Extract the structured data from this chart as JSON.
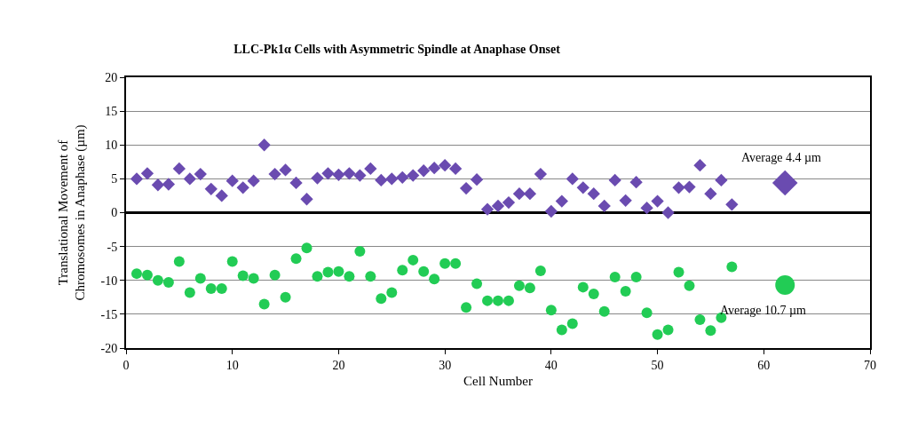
{
  "chart_data": {
    "type": "scatter",
    "title": "LLC-Pk1α Cells with Asymmetric Spindle at Anaphase Onset",
    "xlabel": "Cell Number",
    "ylabel": "Translational Movement of\nChromosomes in Anaphase (µm)",
    "xlim": [
      0,
      70
    ],
    "xticks": [
      0,
      10,
      20,
      30,
      40,
      50,
      60,
      70
    ],
    "ylim": [
      -20,
      20
    ],
    "yticks": [
      -20,
      -15,
      -10,
      -5,
      0,
      5,
      10,
      15,
      20
    ],
    "grid": "y",
    "x": [
      1,
      2,
      3,
      4,
      5,
      6,
      7,
      8,
      9,
      10,
      11,
      12,
      13,
      14,
      15,
      16,
      17,
      18,
      19,
      20,
      21,
      22,
      23,
      24,
      25,
      26,
      27,
      28,
      29,
      30,
      31,
      32,
      33,
      34,
      35,
      36,
      37,
      38,
      39,
      40,
      41,
      42,
      43,
      44,
      45,
      46,
      47,
      48,
      49,
      50,
      51,
      52,
      53,
      54,
      55,
      56,
      57
    ],
    "series": [
      {
        "color": "#6a4bb0",
        "marker": "diamond",
        "values": [
          5,
          5.8,
          4.1,
          4.2,
          6.5,
          5,
          5.7,
          3.5,
          2.5,
          4.7,
          3.7,
          4.7,
          10,
          5.7,
          6.3,
          4.4,
          2,
          5.1,
          5.8,
          5.6,
          5.8,
          5.5,
          6.5,
          4.8,
          5,
          5.2,
          5.5,
          6.2,
          6.6,
          7,
          6.5,
          3.6,
          4.9,
          0.5,
          1,
          1.5,
          2.8,
          2.8,
          5.7,
          0.2,
          1.7,
          5,
          3.7,
          2.8,
          1,
          4.8,
          1.8,
          4.5,
          0.7,
          1.7,
          0,
          3.7,
          3.8,
          7,
          2.8,
          4.8,
          1.2
        ]
      },
      {
        "color": "#22cc55",
        "marker": "circle",
        "values": [
          -9,
          -9.2,
          -10,
          -10.3,
          -7.2,
          -11.8,
          -9.7,
          -11.2,
          -11.2,
          -7.2,
          -9.3,
          -9.7,
          -13.5,
          -9.2,
          -12.5,
          -6.8,
          -5.2,
          -9.4,
          -8.8,
          -8.7,
          -9.4,
          -5.7,
          -9.4,
          -12.7,
          -11.8,
          -8.5,
          -7,
          -8.7,
          -9.8,
          -7.5,
          -7.5,
          -14,
          -10.5,
          -13,
          -13,
          -13,
          -10.8,
          -11.1,
          -8.6,
          -14.4,
          -17.3,
          -16.4,
          -11,
          -12,
          -14.6,
          -9.5,
          -11.6,
          -9.5,
          -14.8,
          -18,
          -17.3,
          -8.8,
          -10.8,
          -15.8,
          -17.4,
          -15.5,
          -8
        ]
      },
      {
        "color": "#6a4bb0",
        "marker": "diamond",
        "x": [
          62
        ],
        "values": [
          4.4
        ]
      },
      {
        "color": "#22cc55",
        "marker": "circle",
        "x": [
          62
        ],
        "values": [
          -10.7
        ]
      }
    ],
    "annotations": [
      {
        "text": "Average 4.4 µm",
        "x": 62,
        "y": 4.4
      },
      {
        "text": "Average 10.7 µm",
        "x": 62,
        "y": -10.7
      }
    ]
  }
}
